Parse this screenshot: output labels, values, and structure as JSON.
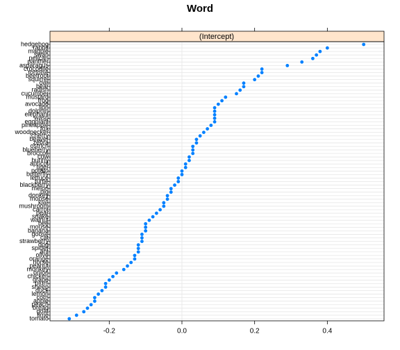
{
  "chart_data": {
    "type": "dot",
    "title": "Word",
    "strip": "(Intercept)",
    "categories": [
      "hedgehog",
      "rabbit",
      "magpie",
      "swan",
      "pelican",
      "panther",
      "asparagus",
      "crocodile",
      "tortoise",
      "beetroot",
      "squirrel",
      "owl",
      "bear",
      "radish",
      "cucumber",
      "mustard",
      "frog",
      "avocado",
      "lion",
      "dolphin",
      "elephant",
      "wasp",
      "eggplant",
      "pineapple",
      "fox",
      "woodpecker",
      "cherry",
      "beaver",
      "zebra",
      "ostrich",
      "blueberry",
      "broccoli",
      "cow",
      "bunny",
      "apricot",
      "tiger",
      "potato",
      "butterfly",
      "lettuce",
      "turtle",
      "blackberry",
      "melon",
      "pig",
      "donkey",
      "moose",
      "kiwi",
      "mushroom",
      "carrot",
      "pear",
      "snake",
      "walnut",
      "bee",
      "mouse",
      "banana",
      "goose",
      "cat",
      "strawberry",
      "dog",
      "spider",
      "ant",
      "olive",
      "orange",
      "horse",
      "peanut",
      "monkey",
      "onion",
      "chicken",
      "grape",
      "plum",
      "sheep",
      "duck",
      "lemon",
      "corn",
      "apple",
      "peach",
      "bread",
      "goat",
      "lime",
      "tomato"
    ],
    "values": [
      0.5,
      0.4,
      0.38,
      0.37,
      0.36,
      0.33,
      0.29,
      0.22,
      0.22,
      0.21,
      0.2,
      0.17,
      0.17,
      0.16,
      0.15,
      0.12,
      0.11,
      0.1,
      0.09,
      0.09,
      0.09,
      0.09,
      0.09,
      0.08,
      0.07,
      0.06,
      0.05,
      0.04,
      0.04,
      0.03,
      0.03,
      0.03,
      0.02,
      0.02,
      0.01,
      0.01,
      0.0,
      0.0,
      -0.01,
      -0.01,
      -0.02,
      -0.03,
      -0.03,
      -0.04,
      -0.04,
      -0.05,
      -0.05,
      -0.06,
      -0.07,
      -0.08,
      -0.09,
      -0.1,
      -0.1,
      -0.1,
      -0.11,
      -0.11,
      -0.11,
      -0.12,
      -0.12,
      -0.12,
      -0.13,
      -0.13,
      -0.14,
      -0.15,
      -0.16,
      -0.18,
      -0.19,
      -0.2,
      -0.21,
      -0.21,
      -0.22,
      -0.23,
      -0.24,
      -0.24,
      -0.25,
      -0.26,
      -0.27,
      -0.29,
      -0.31
    ],
    "color": "#0080ff",
    "xlim": [
      -0.363,
      0.556
    ],
    "xticks": [
      -0.2,
      {
        "value": 0,
        "label": "0.0"
      },
      0.2,
      0.4
    ],
    "grid": true
  }
}
